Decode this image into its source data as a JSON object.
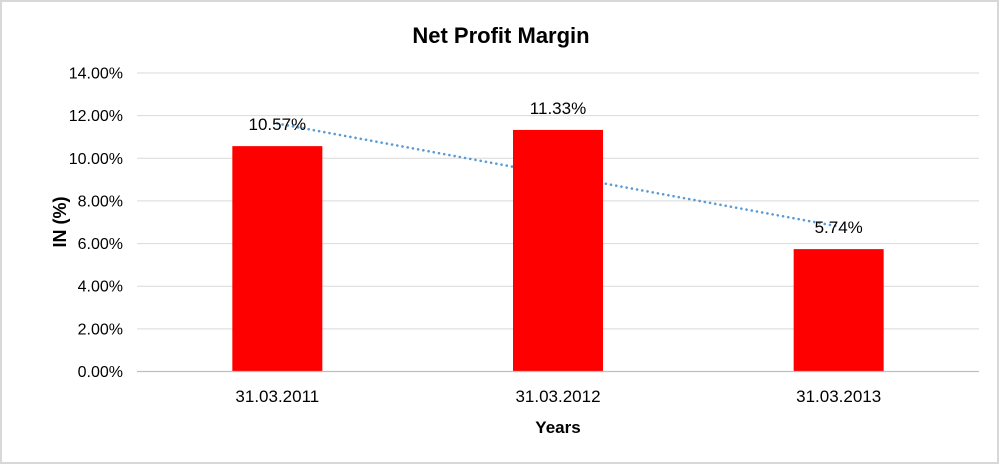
{
  "chart_data": {
    "type": "bar",
    "title": "Net Profit Margin",
    "xlabel": "Years",
    "ylabel": "IN (%)",
    "categories": [
      "31.03.2011",
      "31.03.2012",
      "31.03.2013"
    ],
    "values": [
      10.57,
      11.33,
      5.74
    ],
    "data_labels": [
      "10.57%",
      "11.33%",
      "5.74%"
    ],
    "y_tick_labels": [
      "0.00%",
      "2.00%",
      "4.00%",
      "6.00%",
      "8.00%",
      "10.00%",
      "12.00%",
      "14.00%"
    ],
    "ylim": [
      0,
      14
    ],
    "y_step": 2,
    "grid": true,
    "legend": false,
    "colors": {
      "bar": "#ff0000",
      "trendline": "#5b9bd5",
      "gridline": "#d9d9d9",
      "axis_line": "#bfbfbf",
      "text": "#000000",
      "frame": "#d8d8d8"
    },
    "trendline": {
      "type": "linear",
      "style": "dotted",
      "start_value": 11.63,
      "end_value": 6.8,
      "drawn_behind_bars": true
    }
  }
}
